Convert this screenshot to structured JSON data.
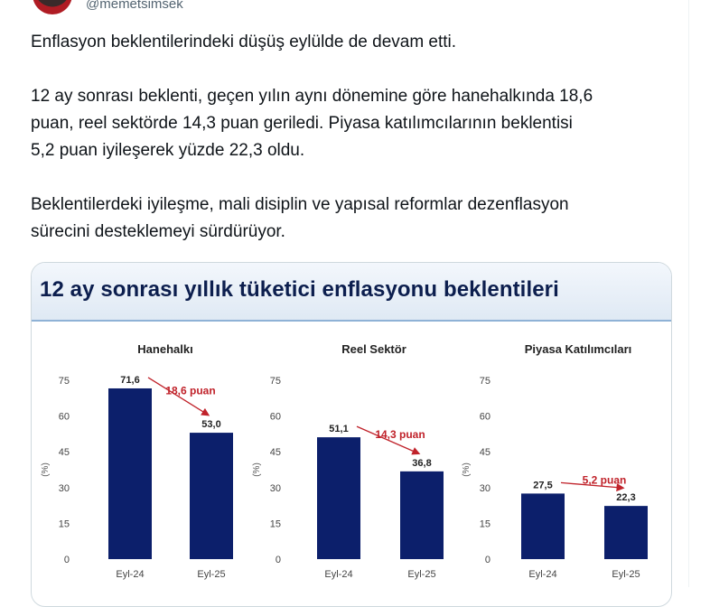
{
  "author": {
    "handle": "@memetsimsek"
  },
  "tweet": {
    "paragraphs": [
      "Enflasyon beklentilerindeki düşüş eylülde de devam etti.",
      "12 ay sonrası beklenti, geçen yılın aynı dönemine göre hanehalkında 18,6\npuan, reel sektörde 14,3 puan geriledi. Piyasa katılımcılarının beklentisi\n5,2 puan iyileşerek yüzde 22,3 oldu.",
      "Beklentilerdeki iyileşme, mali disiplin ve yapısal reformlar dezenflasyon\nsürecini desteklemeyi sürdürüyor."
    ]
  },
  "card": {
    "title": "12 ay sonrası yıllık tüketici enflasyonu beklentileri"
  },
  "chart_data": [
    {
      "type": "bar",
      "title": "Hanehalkı",
      "ylabel": "(%)",
      "categories": [
        "Eyl-24",
        "Eyl-25"
      ],
      "values": [
        71.6,
        53.0
      ],
      "value_labels": [
        "71,6",
        "53,0"
      ],
      "yticks": [
        0,
        15,
        30,
        45,
        60,
        75
      ],
      "ylim": [
        0,
        75
      ],
      "annotation": "18,6 puan",
      "bar_color": "#0c1f6b",
      "annotation_color": "#c0222a"
    },
    {
      "type": "bar",
      "title": "Reel Sektör",
      "ylabel": "(%)",
      "categories": [
        "Eyl-24",
        "Eyl-25"
      ],
      "values": [
        51.1,
        36.8
      ],
      "value_labels": [
        "51,1",
        "36,8"
      ],
      "yticks": [
        0,
        15,
        30,
        45,
        60,
        75
      ],
      "ylim": [
        0,
        75
      ],
      "annotation": "14,3 puan",
      "bar_color": "#0c1f6b",
      "annotation_color": "#c0222a"
    },
    {
      "type": "bar",
      "title": "Piyasa Katılımcıları",
      "ylabel": "(%)",
      "categories": [
        "Eyl-24",
        "Eyl-25"
      ],
      "values": [
        27.5,
        22.3
      ],
      "value_labels": [
        "27,5",
        "22,3"
      ],
      "yticks": [
        0,
        15,
        30,
        45,
        60,
        75
      ],
      "ylim": [
        0,
        75
      ],
      "annotation": "5,2 puan",
      "bar_color": "#0c1f6b",
      "annotation_color": "#c0222a"
    }
  ]
}
